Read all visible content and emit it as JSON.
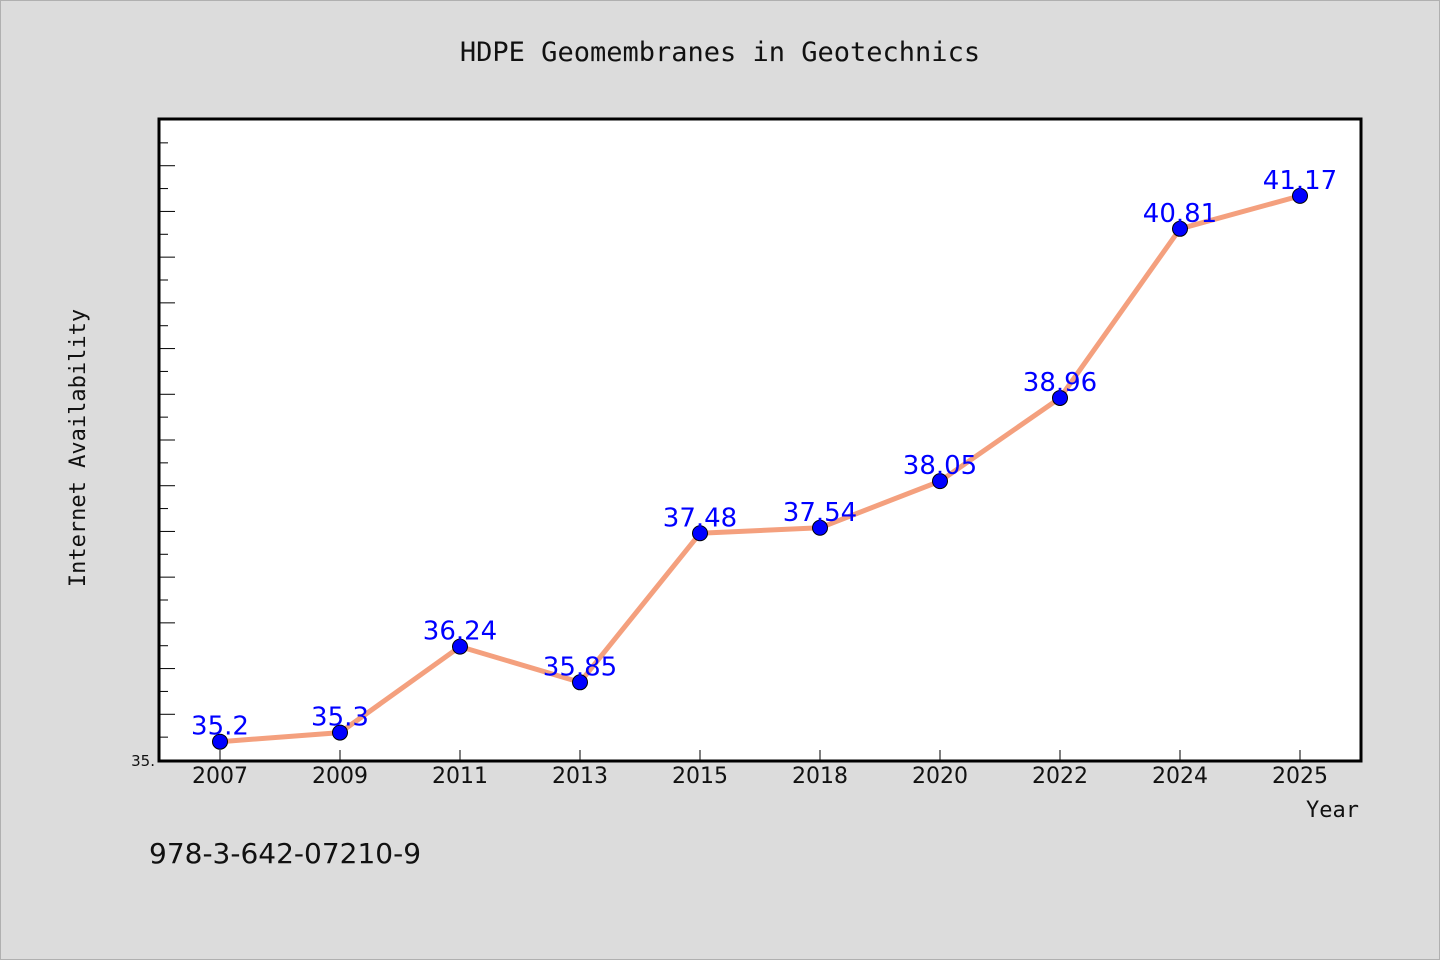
{
  "chart_data": {
    "type": "line",
    "title": "HDPE Geomembranes in Geotechnics",
    "xlabel": "Year",
    "ylabel": "Internet Availability",
    "categories": [
      "2007",
      "2009",
      "2011",
      "2013",
      "2015",
      "2018",
      "2020",
      "2022",
      "2024",
      "2025"
    ],
    "series": [
      {
        "values": [
          35.2,
          35.3,
          36.24,
          35.85,
          37.48,
          37.54,
          38.05,
          38.96,
          40.81,
          41.17
        ],
        "labels": [
          "35.2",
          "35.3",
          "36.24",
          "35.85",
          "37.48",
          "37.54",
          "38.05",
          "38.96",
          "40.81",
          "41.17"
        ]
      }
    ],
    "ylim": [
      35.0,
      42.0
    ],
    "y_tick_labels": [
      "35."
    ],
    "grid": false,
    "colors": {
      "line": "#f4a07e",
      "marker": "#0000ff",
      "labels": "#0000ff"
    }
  },
  "footer": {
    "isbn": "978-3-642-07210-9"
  }
}
